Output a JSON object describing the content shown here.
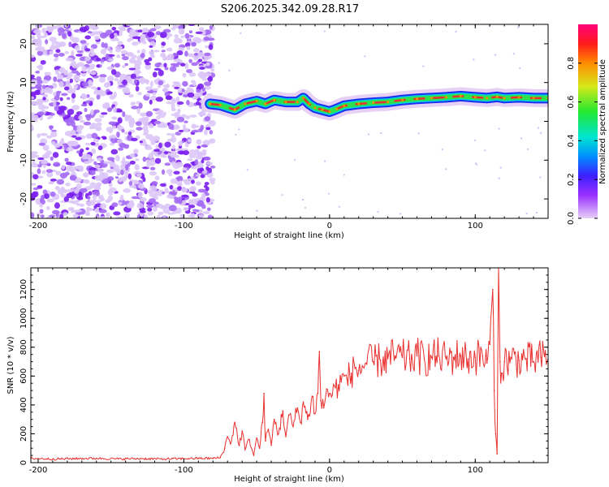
{
  "title": "S206.2025.342.09.28.R17",
  "colors": {
    "text": "#000000",
    "snr_line": "#e8302f",
    "noise_dots": "#7a1ef0",
    "ridge_core": "#e8302f",
    "ridge_mid": "#2fe04a",
    "ridge_outer": "#1a2ef0",
    "colormap": [
      "#e6d0f5",
      "#9b30ff",
      "#3a1fff",
      "#0090ff",
      "#00e5d0",
      "#23e82f",
      "#d6e81a",
      "#ff8c00",
      "#ff1a1a",
      "#ff007a"
    ]
  },
  "spectrogram": {
    "type": "heatmap",
    "xlabel": "Height of straight line (km)",
    "ylabel": "Frequency (Hz)",
    "xlim": [
      -205,
      150
    ],
    "ylim": [
      -25,
      25
    ],
    "xticks": [
      {
        "value": -200,
        "label": "-200"
      },
      {
        "value": -100,
        "label": "-100"
      },
      {
        "value": 0,
        "label": "0"
      },
      {
        "value": 100,
        "label": "100"
      }
    ],
    "yticks": [
      {
        "value": -20,
        "label": "-20"
      },
      {
        "value": -10,
        "label": "-10"
      },
      {
        "value": 0,
        "label": "0"
      },
      {
        "value": 10,
        "label": "10"
      },
      {
        "value": 20,
        "label": "20"
      }
    ],
    "noise_region_x": [
      -205,
      -80
    ],
    "ridge": {
      "x": [
        -82,
        -75,
        -65,
        -58,
        -50,
        -44,
        -38,
        -30,
        -22,
        -18,
        -14,
        -10,
        -5,
        0,
        5,
        10,
        20,
        30,
        40,
        50,
        60,
        70,
        80,
        90,
        100,
        108,
        115,
        120,
        130,
        140,
        150
      ],
      "freq": [
        4.5,
        4.2,
        3.0,
        4.5,
        5.2,
        4.5,
        5.5,
        5.0,
        5.0,
        6.0,
        4.5,
        3.5,
        3.0,
        2.5,
        3.2,
        4.0,
        4.5,
        4.8,
        5.0,
        5.5,
        5.8,
        6.0,
        6.2,
        6.5,
        6.2,
        6.0,
        6.3,
        6.0,
        6.2,
        6.0,
        6.0
      ]
    },
    "colorbar": {
      "label": "Normalized spectral amplitude",
      "min": 0.0,
      "max": 1.0,
      "ticks": [
        {
          "value": 0.0,
          "label": "0.0"
        },
        {
          "value": 0.2,
          "label": "0.2"
        },
        {
          "value": 0.4,
          "label": "0.4"
        },
        {
          "value": 0.6,
          "label": "0.6"
        },
        {
          "value": 0.8,
          "label": "0.8"
        }
      ]
    }
  },
  "chart_data": {
    "type": "line",
    "title": "S206.2025.342.09.28.R17",
    "xlabel": "Height of straight line (km)",
    "ylabel": "SNR (10 * v/v)",
    "xlim": [
      -205,
      150
    ],
    "ylim": [
      0,
      1350
    ],
    "xticks": [
      {
        "value": -200,
        "label": "-200"
      },
      {
        "value": -100,
        "label": "-100"
      },
      {
        "value": 0,
        "label": "0"
      },
      {
        "value": 100,
        "label": "100"
      }
    ],
    "yticks": [
      {
        "value": 0,
        "label": "0"
      },
      {
        "value": 200,
        "label": "200"
      },
      {
        "value": 400,
        "label": "400"
      },
      {
        "value": 600,
        "label": "600"
      },
      {
        "value": 800,
        "label": "800"
      },
      {
        "value": 1000,
        "label": "1000"
      },
      {
        "value": 1200,
        "label": "1200"
      }
    ],
    "series": [
      {
        "name": "SNR",
        "x": [
          -205,
          -190,
          -175,
          -160,
          -145,
          -130,
          -115,
          -100,
          -90,
          -80,
          -75,
          -72,
          -70,
          -68,
          -65,
          -62,
          -60,
          -58,
          -55,
          -52,
          -50,
          -48,
          -46,
          -45,
          -44,
          -42,
          -40,
          -38,
          -35,
          -32,
          -30,
          -28,
          -25,
          -22,
          -20,
          -18,
          -15,
          -12,
          -10,
          -8,
          -7,
          -6,
          -4,
          -2,
          0,
          2,
          4,
          6,
          8,
          10,
          12,
          15,
          18,
          20,
          25,
          30,
          35,
          40,
          45,
          50,
          55,
          60,
          65,
          70,
          75,
          80,
          85,
          90,
          95,
          100,
          105,
          108,
          110,
          112,
          113,
          114,
          115,
          116,
          117,
          118,
          120,
          125,
          130,
          135,
          140,
          145,
          150
        ],
        "values": [
          30,
          25,
          28,
          30,
          26,
          28,
          25,
          28,
          30,
          30,
          35,
          100,
          180,
          130,
          280,
          120,
          220,
          90,
          160,
          50,
          170,
          100,
          280,
          480,
          150,
          230,
          120,
          300,
          200,
          360,
          180,
          330,
          250,
          380,
          280,
          420,
          300,
          460,
          340,
          480,
          770,
          430,
          380,
          510,
          480,
          470,
          520,
          540,
          560,
          600,
          580,
          620,
          660,
          640,
          690,
          700,
          710,
          720,
          740,
          730,
          720,
          740,
          720,
          730,
          740,
          720,
          730,
          740,
          720,
          730,
          740,
          690,
          820,
          1200,
          500,
          200,
          60,
          1350,
          700,
          620,
          700,
          720,
          710,
          720,
          700,
          730,
          720
        ]
      }
    ]
  }
}
